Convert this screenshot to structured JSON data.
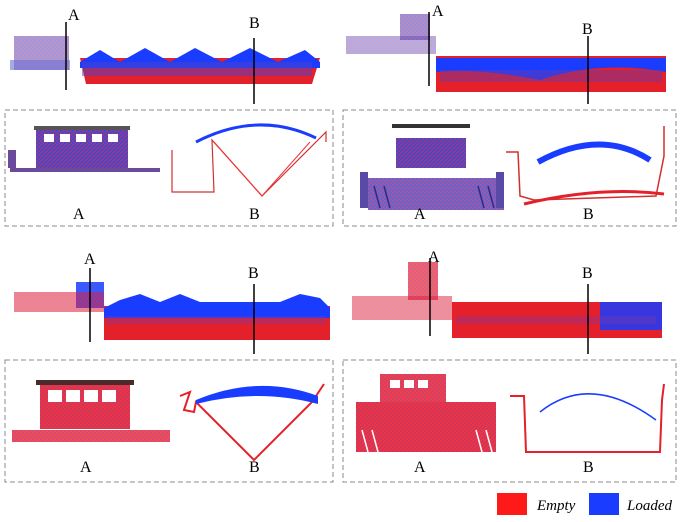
{
  "panels": [
    {
      "label_a": "A",
      "label_b": "B",
      "detail_a": "A",
      "detail_b": "B"
    },
    {
      "label_a": "A",
      "label_b": "B",
      "detail_a": "A",
      "detail_b": "B"
    },
    {
      "label_a": "A",
      "label_b": "B",
      "detail_a": "A",
      "detail_b": "B"
    },
    {
      "label_a": "A",
      "label_b": "B",
      "detail_a": "A",
      "detail_b": "B"
    }
  ],
  "legend": {
    "empty_label": "Empty",
    "loaded_label": "Loaded",
    "empty_color": "#ff1a1a",
    "loaded_color": "#1a3cff"
  }
}
